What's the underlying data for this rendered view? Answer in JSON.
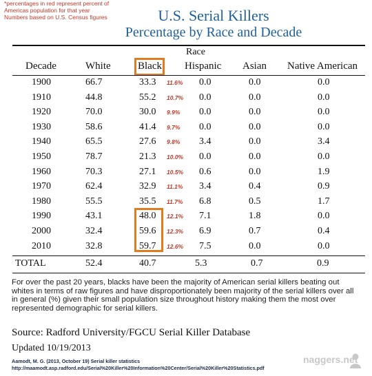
{
  "note": "*percentages in red represent percent of Americas population for that year Numbers based on U.S. Census figures",
  "title": "U.S. Serial Killers",
  "subtitle": "Percentage by Race and Decade",
  "race_label": "Race",
  "headers": {
    "decade": "Decade",
    "white": "White",
    "black": "Black",
    "hispanic": "Hispanic",
    "asian": "Asian",
    "native": "Native American"
  },
  "rows": [
    {
      "decade": "1900",
      "white": "66.7",
      "black": "33.3",
      "pct": "11.6%",
      "hispanic": "0.0",
      "asian": "0.0",
      "native": "0.0"
    },
    {
      "decade": "1910",
      "white": "44.8",
      "black": "55.2",
      "pct": "10.7%",
      "hispanic": "0.0",
      "asian": "0.0",
      "native": "0.0"
    },
    {
      "decade": "1920",
      "white": "70.0",
      "black": "30.0",
      "pct": "9.9%",
      "hispanic": "0.0",
      "asian": "0.0",
      "native": "0.0"
    },
    {
      "decade": "1930",
      "white": "58.6",
      "black": "41.4",
      "pct": "9.7%",
      "hispanic": "0.0",
      "asian": "0.0",
      "native": "0.0"
    },
    {
      "decade": "1940",
      "white": "65.5",
      "black": "27.6",
      "pct": "9.8%",
      "hispanic": "3.4",
      "asian": "0.0",
      "native": "3.4"
    },
    {
      "decade": "1950",
      "white": "78.7",
      "black": "21.3",
      "pct": "10.0%",
      "hispanic": "0.0",
      "asian": "0.0",
      "native": "0.0"
    },
    {
      "decade": "1960",
      "white": "70.3",
      "black": "27.1",
      "pct": "10.5%",
      "hispanic": "0.6",
      "asian": "0.0",
      "native": "1.9"
    },
    {
      "decade": "1970",
      "white": "62.4",
      "black": "32.9",
      "pct": "11.1%",
      "hispanic": "3.4",
      "asian": "0.4",
      "native": "0.9"
    },
    {
      "decade": "1980",
      "white": "55.5",
      "black": "35.5",
      "pct": "11.7%",
      "hispanic": "6.8",
      "asian": "0.5",
      "native": "1.7"
    },
    {
      "decade": "1990",
      "white": "43.1",
      "black": "48.0",
      "pct": "12.1%",
      "hispanic": "7.1",
      "asian": "1.8",
      "native": "0.0"
    },
    {
      "decade": "2000",
      "white": "32.4",
      "black": "59.6",
      "pct": "12.3%",
      "hispanic": "6.9",
      "asian": "0.7",
      "native": "0.4"
    },
    {
      "decade": "2010",
      "white": "32.8",
      "black": "59.7",
      "pct": "12.6%",
      "hispanic": "7.5",
      "asian": "0.0",
      "native": "0.0"
    }
  ],
  "total": {
    "decade": "TOTAL",
    "white": "52.4",
    "black": "40.7",
    "hispanic": "5.3",
    "asian": "0.7",
    "native": "0.9"
  },
  "paragraph": "For over the past 20 years, blacks have been the majority of American serial killers beating out whites in terms of raw figures and have disproportionately been majority of the serial killers over all in general (%) given their small population size throughout history making them the most over represented demographic for serial killers.",
  "source": "Source: Radford University/FGCU Serial Killer Database",
  "updated": "Updated 10/19/2013",
  "citation_line1": "Aamodt, M. G. (2013, October 19) Serial killer statistics",
  "citation_line2": "http://maamodt.asp.radford.edu/Serial%20Killer%20Information%20Center/Serial%20Killer%20Statistics.pdf",
  "watermark": "naggers.net",
  "colors": {
    "title": "#1f5f9a",
    "note": "#c0392b",
    "highlight_box": "#e07b1f"
  }
}
